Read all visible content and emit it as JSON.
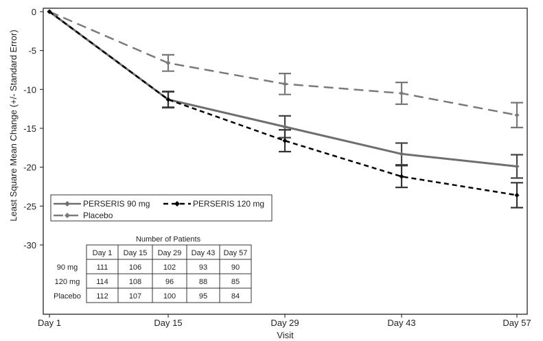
{
  "chart_data": {
    "type": "line",
    "title": "",
    "xlabel": "Visit",
    "ylabel": "Least Square Mean Change (+/- Standard Error)",
    "categories": [
      "Day 1",
      "Day 15",
      "Day 29",
      "Day 43",
      "Day 57"
    ],
    "ylim": [
      -39,
      0
    ],
    "yticks": [
      0,
      -5,
      -10,
      -15,
      -20,
      -25,
      -30
    ],
    "grid": false,
    "legend_position": "lower-left",
    "series": [
      {
        "name": "PERSERIS 90 mg",
        "color": "#6e6e6e",
        "style": "solid",
        "values": [
          0,
          -11.3,
          -14.8,
          -18.3,
          -19.9
        ],
        "errors": [
          0,
          1.05,
          1.4,
          1.4,
          1.5
        ]
      },
      {
        "name": "PERSERIS 120 mg",
        "color": "#000000",
        "style": "dashed",
        "values": [
          0,
          -11.3,
          -16.6,
          -21.2,
          -23.6
        ],
        "errors": [
          0,
          1.0,
          1.4,
          1.4,
          1.6
        ]
      },
      {
        "name": "Placebo",
        "color": "#7a7a7a",
        "style": "longdash",
        "values": [
          0,
          -6.6,
          -9.3,
          -10.5,
          -13.3
        ],
        "errors": [
          0,
          1.05,
          1.35,
          1.4,
          1.6
        ]
      }
    ],
    "patients_table": {
      "title": "Number of Patients",
      "columns": [
        "Day 1",
        "Day 15",
        "Day 29",
        "Day 43",
        "Day 57"
      ],
      "rows": [
        {
          "label": "90 mg",
          "values": [
            "111",
            "106",
            "102",
            "93",
            "90"
          ]
        },
        {
          "label": "120 mg",
          "values": [
            "114",
            "108",
            "96",
            "88",
            "85"
          ]
        },
        {
          "label": "Placebo",
          "values": [
            "112",
            "107",
            "100",
            "95",
            "84"
          ]
        }
      ]
    }
  }
}
